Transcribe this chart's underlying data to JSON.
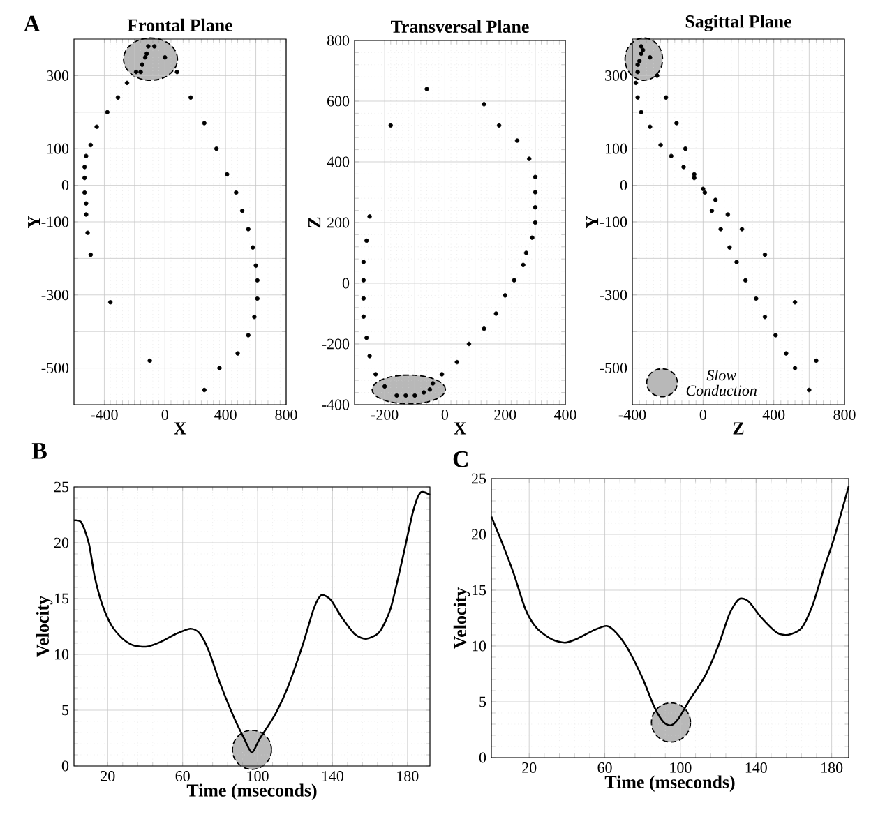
{
  "chart_data": [
    {
      "type": "scatter",
      "title": "Frontal Plane",
      "xlabel": "X",
      "ylabel": "Y",
      "annotations": [
        "A"
      ],
      "grid": true,
      "xlim": [
        -600,
        800
      ],
      "ylim": [
        -600,
        400
      ],
      "xticks": [
        -400,
        {
          "value": -200,
          "label": null
        },
        0,
        {
          "value": 200,
          "label": null
        },
        400,
        {
          "value": 600,
          "label": null
        },
        800
      ],
      "yticks": [
        {
          "value": -400,
          "label": null
        },
        -500,
        -300,
        {
          "value": -200,
          "label": null
        },
        -100,
        0,
        100,
        {
          "value": 200,
          "label": null
        },
        300
      ],
      "series": [
        {
          "color": "#000000",
          "x": [
            80,
            -250,
            -310,
            170,
            -380,
            260,
            -450,
            -490,
            340,
            -520,
            -530,
            410,
            -530,
            -530,
            -520,
            470,
            -520,
            510,
            -510,
            550,
            580,
            -490,
            600,
            610,
            610,
            590,
            550,
            480,
            360,
            260,
            -360,
            -100
          ],
          "values": [
            310,
            280,
            240,
            240,
            200,
            170,
            160,
            110,
            100,
            80,
            50,
            30,
            20,
            -20,
            -50,
            -20,
            -80,
            -70,
            -130,
            -120,
            -170,
            -190,
            -220,
            -260,
            -310,
            -360,
            -410,
            -460,
            -500,
            -560,
            -320,
            -480
          ]
        },
        {
          "color": "#000000",
          "x": [
            -110,
            -70,
            -120,
            0,
            -130,
            -150,
            -160,
            -190
          ],
          "values": [
            380,
            380,
            360,
            350,
            350,
            330,
            310,
            310
          ]
        }
      ]
    },
    {
      "type": "scatter",
      "title": "Transversal Plane",
      "xlabel": "X",
      "ylabel": "Z",
      "grid": true,
      "xlim": [
        -300,
        400
      ],
      "ylim": [
        -400,
        800
      ],
      "xticks": [
        -200,
        {
          "value": -100,
          "label": null
        },
        0,
        {
          "value": 100,
          "label": null
        },
        200,
        {
          "value": 300,
          "label": null
        },
        400
      ],
      "yticks": [
        -400,
        -200,
        0,
        200,
        400,
        600,
        800
      ],
      "series": [
        {
          "color": "#000000",
          "x": [
            -60,
            -180,
            130,
            180,
            240,
            280,
            300,
            300,
            300,
            300,
            290,
            270,
            260,
            230,
            200,
            170,
            130,
            80,
            40,
            -10,
            -230,
            -250,
            -260,
            -270,
            -270,
            -270,
            -270,
            -260,
            -250
          ],
          "values": [
            640,
            520,
            590,
            520,
            470,
            410,
            350,
            300,
            250,
            200,
            150,
            100,
            60,
            10,
            -40,
            -100,
            -150,
            -200,
            -260,
            -300,
            -300,
            -240,
            -180,
            -110,
            -50,
            10,
            70,
            140,
            220
          ]
        },
        {
          "color": "#000000",
          "x": [
            -40,
            -50,
            -70,
            -100,
            -130,
            -160,
            -200
          ],
          "values": [
            -330,
            -350,
            -360,
            -370,
            -370,
            -370,
            -340
          ]
        }
      ]
    },
    {
      "type": "scatter",
      "title": "Sagittal Plane",
      "xlabel": "Z",
      "ylabel": "Y",
      "annotations": [
        "Slow Conduction"
      ],
      "grid": true,
      "xlim": [
        -400,
        800
      ],
      "ylim": [
        -600,
        400
      ],
      "xticks": [
        -400,
        {
          "value": -200,
          "label": null
        },
        0,
        {
          "value": 200,
          "label": null
        },
        400,
        {
          "value": 600,
          "label": null
        },
        800
      ],
      "yticks": [
        {
          "value": -400,
          "label": null
        },
        -500,
        -300,
        {
          "value": -200,
          "label": null
        },
        -100,
        0,
        100,
        {
          "value": 200,
          "label": null
        },
        300
      ],
      "series": [
        {
          "color": "#000000",
          "x": [
            -260,
            -380,
            -370,
            -210,
            -350,
            -150,
            -300,
            -240,
            -100,
            -180,
            -110,
            -50,
            -50,
            0,
            10,
            70,
            50,
            140,
            100,
            220,
            150,
            350,
            190,
            240,
            300,
            520,
            350,
            410,
            470,
            640,
            520,
            600
          ],
          "values": [
            300,
            280,
            240,
            240,
            200,
            170,
            160,
            110,
            100,
            80,
            50,
            30,
            20,
            -10,
            -20,
            -40,
            -70,
            -80,
            -120,
            -120,
            -170,
            -190,
            -210,
            -260,
            -310,
            -320,
            -360,
            -410,
            -460,
            -480,
            -500,
            -560
          ]
        },
        {
          "color": "#000000",
          "x": [
            -350,
            -340,
            -350,
            -300,
            -360,
            -370,
            -370
          ],
          "values": [
            380,
            370,
            360,
            350,
            340,
            330,
            310
          ]
        }
      ]
    },
    {
      "type": "line",
      "xlabel": "Time (mseconds)",
      "ylabel": "Velocity",
      "annotations": [
        "B"
      ],
      "grid": true,
      "xlim": [
        2,
        192
      ],
      "ylim": [
        0,
        25
      ],
      "xticks": [
        20,
        60,
        100,
        140,
        180
      ],
      "yticks": [
        0,
        5,
        10,
        15,
        20,
        25
      ],
      "series": [
        {
          "color": "#000000",
          "x": [
            2,
            6,
            10,
            13,
            17,
            22,
            28,
            34,
            41,
            48,
            56,
            64,
            69,
            74,
            80,
            87,
            93,
            97,
            101,
            109,
            116,
            124,
            130,
            134,
            139,
            145,
            152,
            158,
            165,
            171,
            177,
            183,
            187,
            192
          ],
          "values": [
            22.0,
            21.8,
            19.9,
            17.0,
            14.5,
            12.6,
            11.4,
            10.8,
            10.7,
            11.1,
            11.8,
            12.3,
            11.9,
            10.3,
            7.4,
            4.5,
            2.4,
            1.2,
            2.4,
            4.5,
            7.0,
            10.8,
            14.1,
            15.3,
            14.9,
            13.3,
            11.8,
            11.4,
            12.0,
            14.1,
            18.3,
            22.8,
            24.5,
            24.3
          ]
        }
      ]
    },
    {
      "type": "line",
      "xlabel": "Time (mseconds)",
      "ylabel": "Velocity",
      "annotations": [
        "C"
      ],
      "grid": true,
      "xlim": [
        0,
        189
      ],
      "ylim": [
        0,
        25
      ],
      "xticks": [
        20,
        60,
        100,
        140,
        180
      ],
      "yticks": [
        0,
        5,
        10,
        15,
        20,
        25
      ],
      "series": [
        {
          "color": "#000000",
          "x": [
            0,
            6,
            12,
            18,
            24,
            32,
            39,
            46,
            54,
            61,
            66,
            72,
            80,
            86,
            91,
            95,
            99,
            105,
            113,
            120,
            126,
            131,
            136,
            143,
            151,
            157,
            164,
            170,
            176,
            181,
            189
          ],
          "values": [
            21.6,
            19.1,
            16.4,
            13.3,
            11.6,
            10.6,
            10.3,
            10.7,
            11.4,
            11.8,
            11.2,
            9.8,
            7.1,
            4.6,
            3.2,
            2.9,
            3.5,
            5.2,
            7.3,
            10.0,
            12.9,
            14.2,
            14.0,
            12.5,
            11.2,
            11.0,
            11.6,
            13.7,
            17.0,
            19.5,
            24.3
          ]
        }
      ]
    }
  ]
}
